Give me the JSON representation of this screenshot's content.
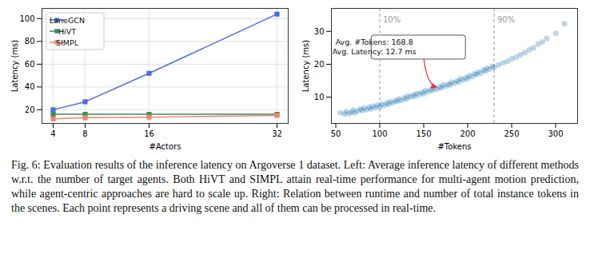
{
  "chart_data": [
    {
      "type": "line",
      "xlabel": "#Actors",
      "ylabel": "Latency (ms)",
      "x": [
        4,
        8,
        16,
        32
      ],
      "xlim": [
        2.6,
        33.4
      ],
      "xticks": [
        4,
        8,
        16,
        32
      ],
      "ylim": [
        8,
        109
      ],
      "yticks": [
        20,
        40,
        60,
        80,
        100
      ],
      "grid": true,
      "legend": "upper left",
      "series": [
        {
          "name": "LaneGCN",
          "color": "#4a6fdc",
          "marker": "square",
          "values": [
            20,
            27,
            52,
            104
          ]
        },
        {
          "name": "HiVT",
          "color": "#3c8c5c",
          "marker": "square",
          "values": [
            16,
            16,
            16,
            16
          ]
        },
        {
          "name": "SIMPL",
          "color": "#ef8470",
          "marker": "square",
          "values": [
            12,
            13,
            13.5,
            15
          ]
        }
      ]
    },
    {
      "type": "scatter",
      "xlabel": "#Tokens",
      "ylabel": "Latency (ms)",
      "xlim": [
        45,
        325
      ],
      "xticks": [
        50,
        100,
        150,
        200,
        250,
        300
      ],
      "ylim": [
        2,
        37
      ],
      "yticks": [
        10,
        20,
        30
      ],
      "grid": false,
      "color": "#1f77b4",
      "marker": "circle",
      "vlines": [
        {
          "x": 100,
          "label": "10%"
        },
        {
          "x": 230,
          "label": "90%"
        }
      ],
      "annotation": {
        "lines": [
          "Avg. #Tokens: 168.8",
          "Avg. Latency: 12.7 ms"
        ],
        "x": 168.8,
        "y": 12.7
      },
      "x": [
        55,
        60,
        62,
        65,
        68,
        70,
        72,
        75,
        78,
        80,
        82,
        85,
        88,
        90,
        92,
        95,
        97,
        100,
        102,
        105,
        108,
        110,
        112,
        115,
        118,
        120,
        122,
        125,
        128,
        130,
        132,
        135,
        138,
        140,
        142,
        145,
        148,
        150,
        152,
        155,
        158,
        160,
        162,
        165,
        168,
        170,
        172,
        175,
        178,
        180,
        182,
        185,
        188,
        190,
        192,
        195,
        198,
        200,
        202,
        205,
        208,
        210,
        212,
        215,
        218,
        220,
        222,
        225,
        228,
        230,
        235,
        240,
        245,
        250,
        255,
        260,
        265,
        270,
        275,
        280,
        285,
        290,
        300,
        310
      ],
      "values": [
        5.2,
        4.9,
        5.6,
        5.0,
        5.4,
        6.1,
        5.3,
        5.8,
        6.4,
        5.9,
        6.6,
        6.2,
        6.9,
        6.4,
        7.2,
        6.8,
        7.5,
        7.0,
        7.9,
        7.4,
        8.2,
        7.8,
        8.6,
        8.3,
        9.0,
        8.7,
        9.5,
        9.0,
        9.8,
        9.4,
        10.3,
        10.0,
        10.7,
        10.2,
        11.1,
        10.8,
        11.5,
        11.0,
        12.0,
        11.6,
        12.3,
        12.0,
        12.9,
        12.4,
        13.1,
        12.8,
        13.7,
        13.3,
        14.0,
        13.7,
        14.6,
        14.2,
        15.0,
        14.6,
        15.6,
        15.2,
        16.0,
        15.6,
        16.6,
        16.2,
        17.1,
        16.8,
        17.7,
        17.3,
        18.3,
        17.9,
        18.8,
        18.5,
        19.4,
        19.0,
        19.8,
        20.4,
        20.9,
        21.6,
        22.2,
        22.9,
        23.6,
        24.4,
        25.0,
        26.1,
        26.8,
        27.9,
        29.4,
        32.3
      ]
    }
  ],
  "caption": "Fig. 6: Evaluation results of the inference latency on Argoverse 1 dataset. Left: Average inference latency of different methods w.r.t. the number of target agents. Both HiVT and SIMPL attain real-time performance for multi-agent motion prediction, while agent-centric approaches are hard to scale up. Right: Relation between runtime and number of total instance tokens in the scenes. Each point represents a driving scene and all of them can be processed in real-time."
}
